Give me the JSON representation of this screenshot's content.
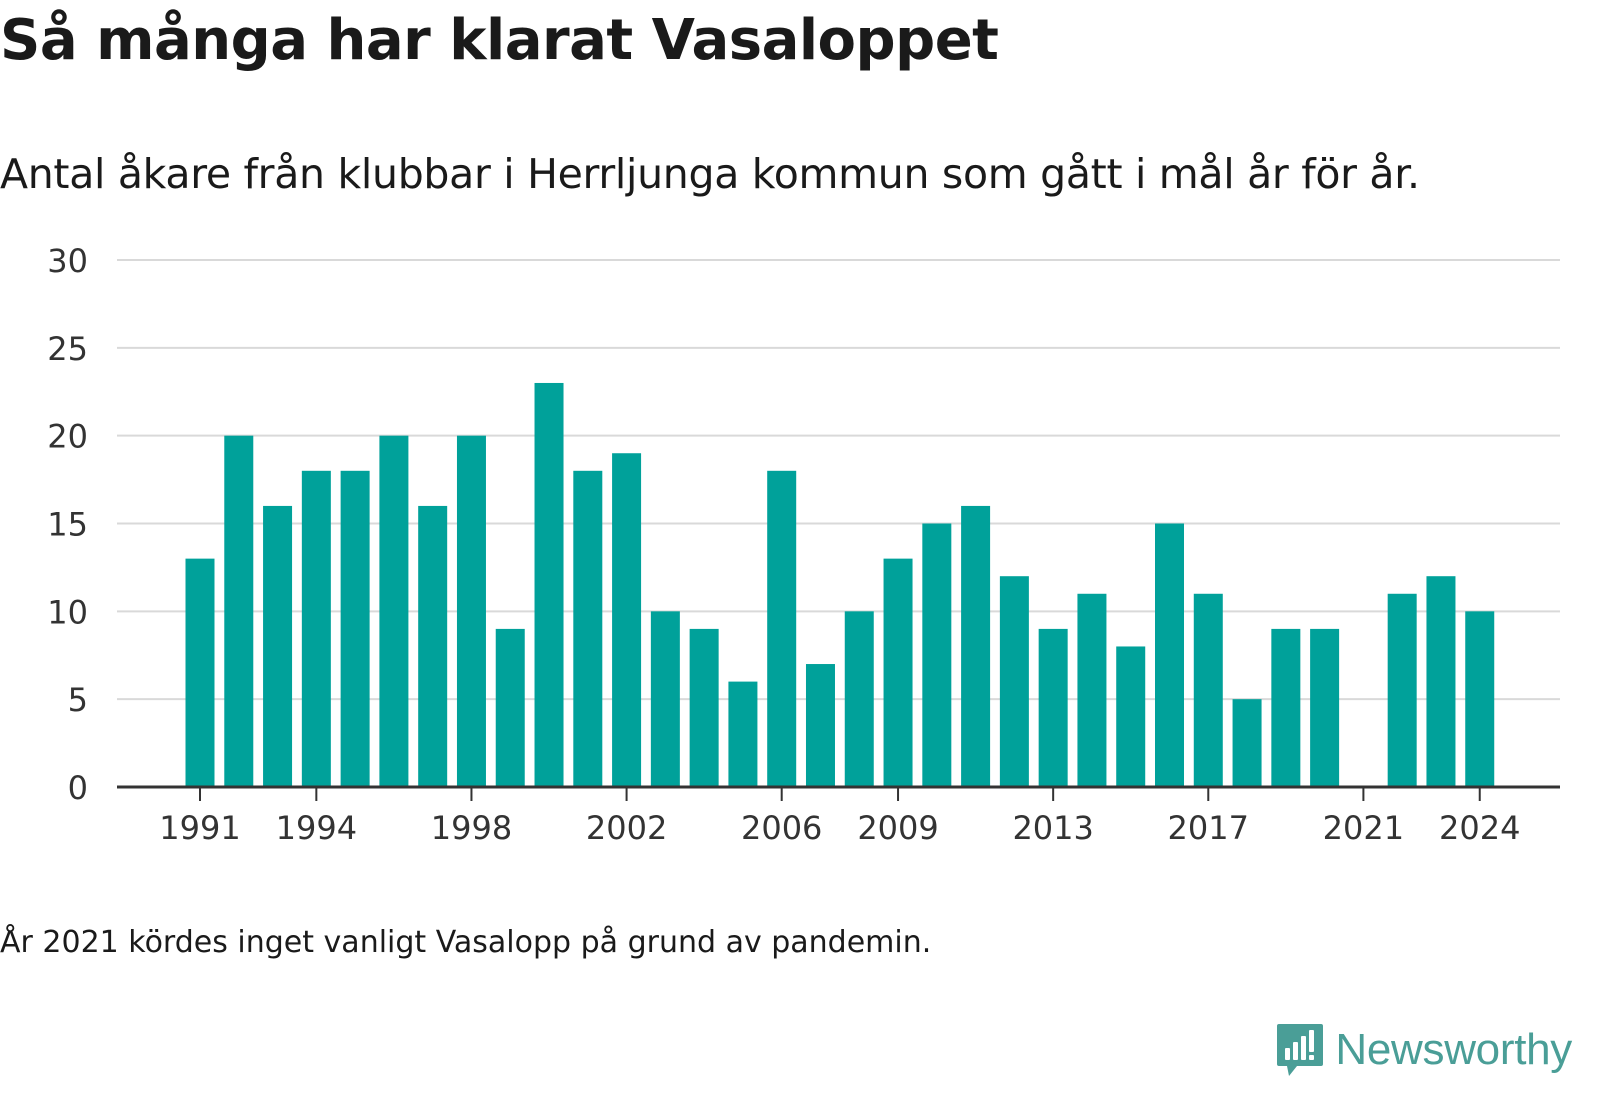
{
  "title": "Så många har klarat Vasaloppet",
  "subtitle": "Antal åkare från klubbar i Herrljunga kommun som gått i mål år för år.",
  "note": "År 2021 kördes inget vanligt Vasalopp på grund av pandemin.",
  "brand": {
    "name": "Newsworthy",
    "icon": "newsworthy-logo-icon",
    "color": "#4a9e97"
  },
  "chart_data": {
    "type": "bar",
    "categories": [
      "1991",
      "1992",
      "1993",
      "1994",
      "1995",
      "1996",
      "1997",
      "1998",
      "1999",
      "2000",
      "2001",
      "2002",
      "2003",
      "2004",
      "2005",
      "2006",
      "2007",
      "2008",
      "2009",
      "2010",
      "2011",
      "2012",
      "2013",
      "2014",
      "2015",
      "2016",
      "2017",
      "2018",
      "2019",
      "2020",
      "2021",
      "2022",
      "2023",
      "2024"
    ],
    "values": [
      13,
      20,
      16,
      18,
      18,
      20,
      16,
      20,
      9,
      23,
      18,
      19,
      10,
      9,
      6,
      18,
      7,
      10,
      13,
      15,
      16,
      12,
      9,
      11,
      8,
      15,
      11,
      5,
      9,
      9,
      null,
      11,
      12,
      10
    ],
    "tick_labels": [
      "1991",
      "1994",
      "1998",
      "2002",
      "2006",
      "2009",
      "2013",
      "2017",
      "2021",
      "2024"
    ],
    "y_ticks": [
      0,
      5,
      10,
      15,
      20,
      25,
      30
    ],
    "ylim": [
      0,
      30
    ],
    "xlabel": "",
    "ylabel": "",
    "grid": true,
    "bar_color": "#00a19a"
  }
}
